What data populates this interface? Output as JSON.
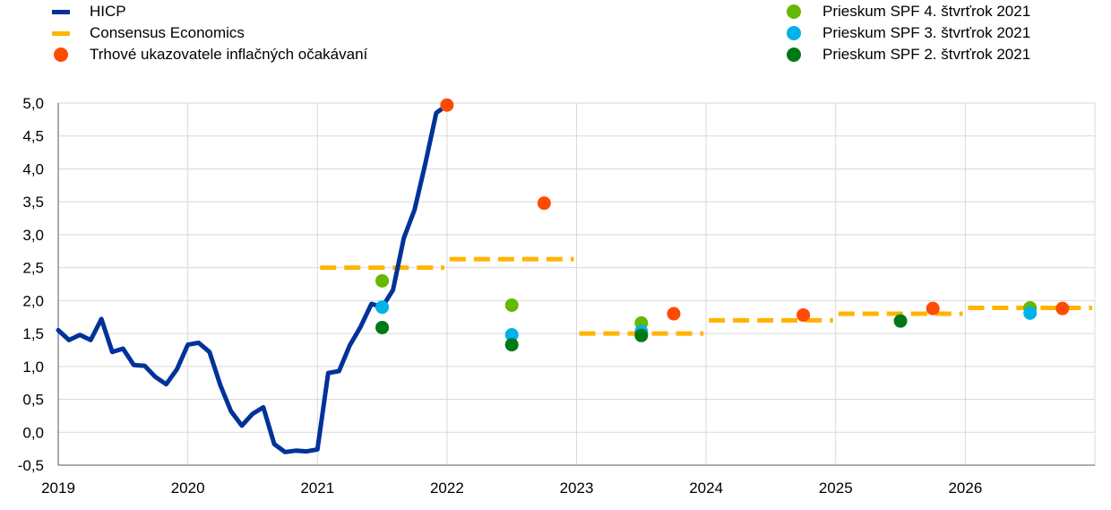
{
  "chart_data": {
    "type": "line",
    "title": "",
    "xlabel": "",
    "ylabel": "",
    "ylim": [
      -0.5,
      5.0
    ],
    "xlim": [
      2019.0,
      2027.0
    ],
    "y_ticks": [
      "-0,5",
      "0,0",
      "0,5",
      "1,0",
      "1,5",
      "2,0",
      "2,5",
      "3,0",
      "3,5",
      "4,0",
      "4,5",
      "5,0"
    ],
    "y_tick_values": [
      -0.5,
      0,
      0.5,
      1.0,
      1.5,
      2.0,
      2.5,
      3.0,
      3.5,
      4.0,
      4.5,
      5.0
    ],
    "x_ticks": [
      "2019",
      "2020",
      "2021",
      "2022",
      "2023",
      "2024",
      "2025",
      "2026"
    ],
    "x_tick_values": [
      2019,
      2020,
      2021,
      2022,
      2023,
      2024,
      2025,
      2026
    ],
    "grid": true,
    "legend_placement": "top",
    "hicp": {
      "name": "HICP",
      "color": "#003299",
      "points": [
        [
          2019.0,
          1.55
        ],
        [
          2019.083,
          1.4
        ],
        [
          2019.167,
          1.48
        ],
        [
          2019.25,
          1.4
        ],
        [
          2019.333,
          1.72
        ],
        [
          2019.417,
          1.22
        ],
        [
          2019.5,
          1.27
        ],
        [
          2019.583,
          1.02
        ],
        [
          2019.667,
          1.01
        ],
        [
          2019.75,
          0.84
        ],
        [
          2019.833,
          0.73
        ],
        [
          2019.917,
          0.96
        ],
        [
          2020.0,
          1.33
        ],
        [
          2020.083,
          1.36
        ],
        [
          2020.167,
          1.22
        ],
        [
          2020.25,
          0.72
        ],
        [
          2020.333,
          0.32
        ],
        [
          2020.417,
          0.1
        ],
        [
          2020.5,
          0.28
        ],
        [
          2020.583,
          0.38
        ],
        [
          2020.667,
          -0.18
        ],
        [
          2020.75,
          -0.3
        ],
        [
          2020.833,
          -0.28
        ],
        [
          2020.917,
          -0.29
        ],
        [
          2021.0,
          -0.26
        ],
        [
          2021.083,
          0.9
        ],
        [
          2021.167,
          0.93
        ],
        [
          2021.25,
          1.32
        ],
        [
          2021.333,
          1.6
        ],
        [
          2021.417,
          1.95
        ],
        [
          2021.5,
          1.9
        ],
        [
          2021.583,
          2.16
        ],
        [
          2021.667,
          2.95
        ],
        [
          2021.75,
          3.38
        ],
        [
          2021.833,
          4.08
        ],
        [
          2021.917,
          4.85
        ],
        [
          2022.0,
          4.97
        ]
      ]
    },
    "consensus": {
      "name": "Consensus Economics",
      "color": "#FFB400",
      "segments": [
        {
          "x0": 2021.0,
          "x1": 2022.0,
          "y": 2.5
        },
        {
          "x0": 2022.0,
          "x1": 2023.0,
          "y": 2.63
        },
        {
          "x0": 2023.0,
          "x1": 2024.0,
          "y": 1.5
        },
        {
          "x0": 2024.0,
          "x1": 2025.0,
          "y": 1.7
        },
        {
          "x0": 2025.0,
          "x1": 2026.0,
          "y": 1.8
        },
        {
          "x0": 2026.0,
          "x1": 2027.0,
          "y": 1.89
        }
      ]
    },
    "market": {
      "name": "Trhové ukazovatele inflačných očakávaní",
      "color": "#FF4B00",
      "points": [
        [
          2022.0,
          4.97
        ],
        [
          2022.75,
          3.48
        ],
        [
          2023.75,
          1.8
        ],
        [
          2024.75,
          1.78
        ],
        [
          2025.75,
          1.88
        ],
        [
          2026.75,
          1.88
        ]
      ]
    },
    "spf_q4": {
      "name": "Prieskum SPF 4. štvrťrok 2021",
      "color": "#65B800",
      "points": [
        [
          2021.5,
          2.3
        ],
        [
          2022.5,
          1.93
        ],
        [
          2023.5,
          1.66
        ],
        [
          2026.5,
          1.89
        ]
      ]
    },
    "spf_q3": {
      "name": "Prieskum SPF 3. štvrťrok 2021",
      "color": "#00B1EA",
      "points": [
        [
          2021.5,
          1.9
        ],
        [
          2022.5,
          1.48
        ],
        [
          2023.5,
          1.53
        ],
        [
          2026.5,
          1.81
        ]
      ]
    },
    "spf_q2": {
      "name": "Prieskum SPF 2. štvrťrok 2021",
      "color": "#007816",
      "points": [
        [
          2021.5,
          1.59
        ],
        [
          2022.5,
          1.33
        ],
        [
          2023.5,
          1.47
        ],
        [
          2025.5,
          1.69
        ]
      ]
    }
  }
}
